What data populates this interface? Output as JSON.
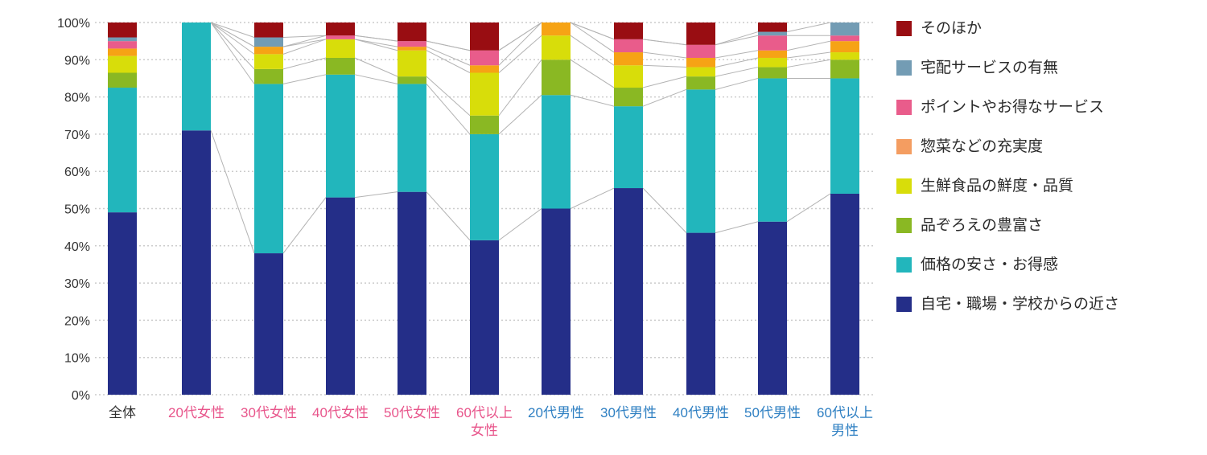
{
  "legend": {
    "items": [
      {
        "label": "そのほか",
        "color": "#990d12"
      },
      {
        "label": "宅配サービスの有無",
        "color": "#739cb4"
      },
      {
        "label": "ポイントやお得なサービス",
        "color": "#e95c8b"
      },
      {
        "label": "惣菜などの充実度",
        "color": "#f49d61"
      },
      {
        "label": "生鮮食品の鮮度・品質",
        "color": "#d8dd0a"
      },
      {
        "label": "品ぞろえの豊富さ",
        "color": "#8ab823"
      },
      {
        "label": "価格の安さ・お得感",
        "color": "#22b6bc"
      },
      {
        "label": "自宅・職場・学校からの近さ",
        "color": "#242e88"
      }
    ]
  },
  "chart_data": {
    "type": "bar",
    "subtype": "100-percent-stacked-column-with-connectors",
    "title": "",
    "xlabel": "",
    "ylabel": "",
    "ylim": [
      0,
      100
    ],
    "grid": "dotted-horizontal",
    "legend_position": "right",
    "yticks": [
      "0%",
      "10%",
      "20%",
      "30%",
      "40%",
      "50%",
      "60%",
      "70%",
      "80%",
      "90%",
      "100%"
    ],
    "categories": [
      {
        "label": "全体",
        "lines": [
          "全体"
        ],
        "color": "#333333"
      },
      {
        "label": "20代女性",
        "lines": [
          "20代女性"
        ],
        "color": "#e8558b"
      },
      {
        "label": "30代女性",
        "lines": [
          "30代女性"
        ],
        "color": "#e8558b"
      },
      {
        "label": "40代女性",
        "lines": [
          "40代女性"
        ],
        "color": "#e8558b"
      },
      {
        "label": "50代女性",
        "lines": [
          "50代女性"
        ],
        "color": "#e8558b"
      },
      {
        "label": "60代以上女性",
        "lines": [
          "60代以上",
          "女性"
        ],
        "color": "#e8558b"
      },
      {
        "label": "20代男性",
        "lines": [
          "20代男性"
        ],
        "color": "#2e7fc2"
      },
      {
        "label": "30代男性",
        "lines": [
          "30代男性"
        ],
        "color": "#2e7fc2"
      },
      {
        "label": "40代男性",
        "lines": [
          "40代男性"
        ],
        "color": "#2e7fc2"
      },
      {
        "label": "50代男性",
        "lines": [
          "50代男性"
        ],
        "color": "#2e7fc2"
      },
      {
        "label": "60代以上男性",
        "lines": [
          "60代以上",
          "男性"
        ],
        "color": "#2e7fc2"
      }
    ],
    "series": [
      {
        "name": "自宅・職場・学校からの近さ",
        "color": "#242e88",
        "values": [
          49,
          71,
          38,
          53,
          54.5,
          41.5,
          50,
          55.5,
          43.5,
          46.5,
          54
        ]
      },
      {
        "name": "価格の安さ・お得感",
        "color": "#22b6bc",
        "values": [
          33.5,
          29,
          45.5,
          33,
          29,
          28.5,
          30.5,
          22,
          38.5,
          38.5,
          31
        ]
      },
      {
        "name": "品ぞろえの豊富さ",
        "color": "#8ab823",
        "values": [
          4,
          0,
          4,
          4.5,
          2,
          5,
          9.5,
          5,
          3.5,
          3,
          5
        ]
      },
      {
        "name": "生鮮食品の鮮度・品質",
        "color": "#d8dd0a",
        "values": [
          4.5,
          0,
          4,
          5,
          7,
          11.5,
          6.5,
          6,
          2.5,
          2.5,
          2
        ]
      },
      {
        "name": "惣菜などの充実度",
        "color": "#f6a315",
        "values": [
          2,
          0,
          2,
          0,
          1,
          2,
          3.5,
          3.5,
          2.5,
          2,
          3
        ]
      },
      {
        "name": "ポイントやお得なサービス",
        "color": "#e95c8b",
        "values": [
          2,
          0,
          0,
          1,
          1.5,
          4,
          0,
          3.5,
          3.5,
          4,
          1.5
        ]
      },
      {
        "name": "宅配サービスの有無",
        "color": "#739cb4",
        "values": [
          1,
          0,
          2.5,
          0,
          0,
          0,
          0,
          0,
          0,
          1,
          3.5
        ]
      },
      {
        "name": "そのほか",
        "color": "#990d12",
        "values": [
          4,
          0,
          4,
          3.5,
          5,
          7.5,
          0,
          4.5,
          6,
          2.5,
          0
        ]
      }
    ],
    "connectors": {
      "note": "thin gray lines link cumulative segment boundaries between adjacent demographic bars (全体 excluded)",
      "color": "#b3b3b3"
    },
    "gridline_color": "#cccccc"
  }
}
